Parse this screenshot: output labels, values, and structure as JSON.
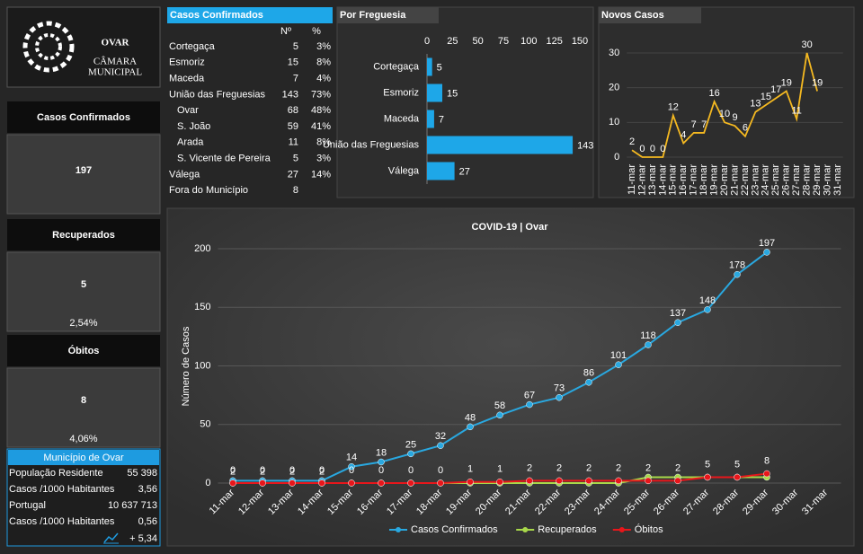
{
  "header": {
    "logo": [
      "OVAR",
      "CÂMARA",
      "MUNICIPAL"
    ]
  },
  "kpis": [
    {
      "title": "Casos Confirmados",
      "value": 197,
      "color": "#1ea7e8"
    },
    {
      "title": "Recuperados",
      "value": 5,
      "note": "2,54%",
      "color": "#8cc63f"
    },
    {
      "title": "Óbitos",
      "value": 8,
      "note": "4,06%",
      "color": "#e8161b"
    }
  ],
  "table": {
    "title": "Casos Confirmados",
    "headers": [
      "Nº",
      "%"
    ],
    "rows": [
      {
        "name": "Cortegaça",
        "n": 5,
        "pct": "3%"
      },
      {
        "name": "Esmoriz",
        "n": 15,
        "pct": "8%"
      },
      {
        "name": "Maceda",
        "n": 7,
        "pct": "4%"
      },
      {
        "name": "União das Freguesias",
        "n": 143,
        "pct": "73%"
      },
      {
        "name": "Ovar",
        "n": 68,
        "pct": "48%",
        "sub": true
      },
      {
        "name": "S. João",
        "n": 59,
        "pct": "41%",
        "sub": true
      },
      {
        "name": "Arada",
        "n": 11,
        "pct": "8%",
        "sub": true
      },
      {
        "name": "S. Vicente de Pereira",
        "n": 5,
        "pct": "3%",
        "sub": true
      },
      {
        "name": "Válega",
        "n": 27,
        "pct": "14%"
      },
      {
        "name": "Fora do Município",
        "n": 8
      }
    ]
  },
  "municipio": {
    "title": "Município de Ovar",
    "rows": [
      {
        "label": "População Residente",
        "value": "55 398"
      },
      {
        "label": "Casos /1000 Habitantes",
        "value": "3,56"
      },
      {
        "label": "Portugal",
        "value": "10 637 713",
        "muted": true
      },
      {
        "label": "Casos /1000 Habitantes",
        "value": "0,56",
        "muted": true
      }
    ],
    "trend": "+ 5,34"
  },
  "chart_data": [
    {
      "type": "hbar",
      "title": "Por Freguesia",
      "categories": [
        "Cortegaça",
        "Esmoriz",
        "Maceda",
        "União das Freguesias",
        "Válega"
      ],
      "values": [
        5,
        15,
        7,
        143,
        27
      ],
      "color": "#1ea7e8",
      "xlim": [
        0,
        150
      ],
      "xticks": [
        0,
        25,
        50,
        75,
        100,
        125,
        150
      ]
    },
    {
      "type": "line",
      "title": "Novos Casos",
      "categories": [
        "11-mar",
        "12-mar",
        "13-mar",
        "14-mar",
        "15-mar",
        "16-mar",
        "17-mar",
        "18-mar",
        "19-mar",
        "20-mar",
        "21-mar",
        "22-mar",
        "23-mar",
        "24-mar",
        "25-mar",
        "26-mar",
        "27-mar",
        "28-mar",
        "29-mar",
        "30-mar",
        "31-mar"
      ],
      "values": [
        2,
        0,
        0,
        0,
        12,
        4,
        7,
        7,
        16,
        10,
        9,
        6,
        13,
        15,
        17,
        19,
        11,
        30,
        19,
        null,
        null
      ],
      "color": "#f5b921",
      "ylim": [
        0,
        35
      ],
      "yticks": [
        0,
        10,
        20,
        30
      ],
      "grid": true
    },
    {
      "type": "line",
      "title": "COVID-19 | Ovar",
      "y_label": "Número de Casos",
      "categories": [
        "11-mar",
        "12-mar",
        "13-mar",
        "14-mar",
        "15-mar",
        "16-mar",
        "17-mar",
        "18-mar",
        "19-mar",
        "20-mar",
        "21-mar",
        "22-mar",
        "23-mar",
        "24-mar",
        "25-mar",
        "26-mar",
        "27-mar",
        "28-mar",
        "29-mar",
        "30-mar",
        "31-mar"
      ],
      "series": [
        {
          "name": "Casos Confirmados",
          "color": "#29a8e0",
          "labels": true,
          "values": [
            2,
            2,
            2,
            2,
            14,
            18,
            25,
            32,
            48,
            58,
            67,
            73,
            86,
            101,
            118,
            137,
            148,
            178,
            197,
            null,
            null
          ]
        },
        {
          "name": "Recuperados",
          "color": "#a8d84a",
          "labels": false,
          "values": [
            0,
            0,
            0,
            0,
            0,
            0,
            0,
            0,
            0,
            0,
            0,
            0,
            0,
            0,
            5,
            5,
            5,
            5,
            5,
            null,
            null
          ]
        },
        {
          "name": "Óbitos",
          "color": "#e8161b",
          "labels": true,
          "values": [
            0,
            0,
            0,
            0,
            0,
            0,
            0,
            0,
            1,
            1,
            2,
            2,
            2,
            2,
            2,
            2,
            5,
            5,
            8,
            null,
            null
          ]
        }
      ],
      "ylim": [
        0,
        200
      ],
      "yticks": [
        0,
        50,
        100,
        150,
        200
      ],
      "grid": true,
      "legend": "bottom"
    }
  ]
}
